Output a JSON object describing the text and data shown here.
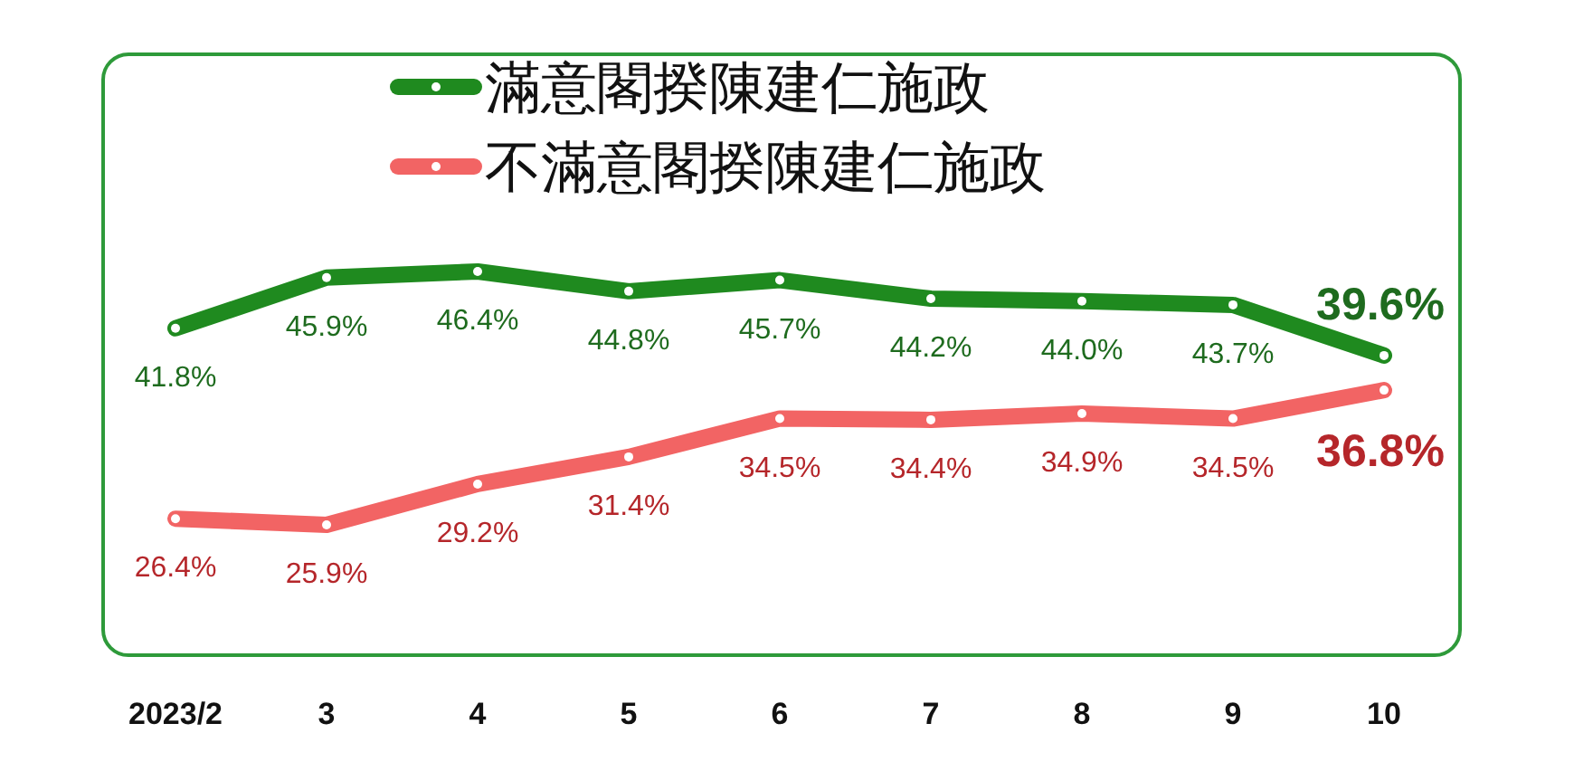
{
  "chart_data": {
    "type": "line",
    "categories": [
      "2023/2",
      "3",
      "4",
      "5",
      "6",
      "7",
      "8",
      "9",
      "10"
    ],
    "series": [
      {
        "name": "滿意閣揆陳建仁施政",
        "color": "#1f8a1f",
        "values": [
          41.8,
          45.9,
          46.4,
          44.8,
          45.7,
          44.2,
          44.0,
          43.7,
          39.6
        ],
        "value_labels": [
          "41.8%",
          "45.9%",
          "46.4%",
          "44.8%",
          "45.7%",
          "44.2%",
          "44.0%",
          "43.7%",
          "39.6%"
        ]
      },
      {
        "name": "不滿意閣揆陳建仁施政",
        "color": "#f26464",
        "values": [
          26.4,
          25.9,
          29.2,
          31.4,
          34.5,
          34.4,
          34.9,
          34.5,
          36.8
        ],
        "value_labels": [
          "26.4%",
          "25.9%",
          "29.2%",
          "31.4%",
          "34.5%",
          "34.4%",
          "34.9%",
          "34.5%",
          "36.8%"
        ]
      }
    ],
    "legend": "top",
    "marker": "circle"
  }
}
